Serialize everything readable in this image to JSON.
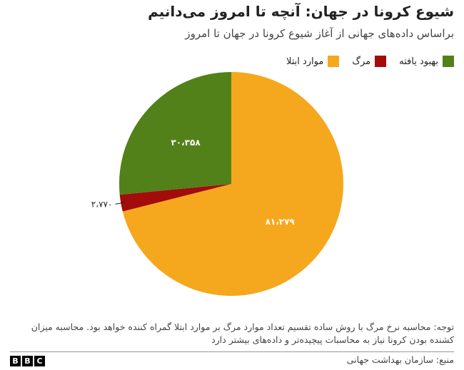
{
  "title": "شیوع کرونا در جهان: آنچه تا امروز می‌دانیم",
  "subtitle": "براساس داده‌های جهانی از آغاز شیوع کرونا در جهان تا امروز",
  "chart_data": {
    "type": "pie",
    "slices": [
      {
        "name": "موارد ابتلا",
        "value": 81279,
        "label": "۸۱،۲۷۹",
        "color": "#f5a81d"
      },
      {
        "name": "مرگ",
        "value": 2770,
        "label": "۲،۷۷۰",
        "color": "#a40b0b"
      },
      {
        "name": "بهبود یافته",
        "value": 30358,
        "label": "۳۰،۳۵۸",
        "color": "#528119"
      }
    ],
    "legend": [
      {
        "name": "بهبود یافته",
        "color": "#528119"
      },
      {
        "name": "مرگ",
        "color": "#a40b0b"
      },
      {
        "name": "موارد ابتلا",
        "color": "#f5a81d"
      }
    ],
    "legend_position": "top-right"
  },
  "note": "توجه: محاسبه نرخ مرگ با روش ساده تقسیم تعداد موارد مرگ بر موارد ابتلا گمراه کننده خواهد بود. محاسبه میزان کشنده بودن کرونا نیاز به محاسبات پیچیده‌تر و داده‌های بیشتر دارد",
  "source": "منبع: سازمان بهداشت جهانی",
  "logo_letters": [
    "B",
    "B",
    "C"
  ]
}
